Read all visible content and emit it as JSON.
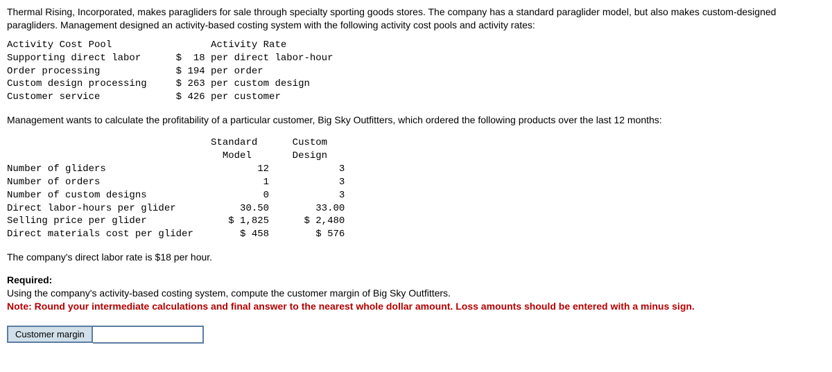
{
  "intro": {
    "p1": "Thermal Rising, Incorporated, makes paragliders for sale through specialty sporting goods stores. The company has a standard paraglider model, but also makes custom-designed paragliders. Management designed an activity-based costing system with the following activity cost pools and activity rates:"
  },
  "activity_table": {
    "header_left": "Activity Cost Pool",
    "header_right": "Activity Rate",
    "rows": [
      {
        "pool": "Supporting direct labor",
        "rate": "$ 18 per direct labor-hour"
      },
      {
        "pool": "Order processing",
        "rate": "$ 194 per order"
      },
      {
        "pool": "Custom design processing",
        "rate": "$ 263 per custom design"
      },
      {
        "pool": "Customer service",
        "rate": "$ 426 per customer"
      }
    ]
  },
  "mid_paragraph": "Management wants to calculate the profitability of a particular customer, Big Sky Outfitters, which ordered the following products over the last 12 months:",
  "product_table": {
    "col_headers": {
      "std_l1": "Standard",
      "std_l2": "Model",
      "cus_l1": "Custom",
      "cus_l2": "Design"
    },
    "rows": [
      {
        "label": "Number of gliders",
        "std": "12",
        "cus": "3"
      },
      {
        "label": "Number of orders",
        "std": "1",
        "cus": "3"
      },
      {
        "label": "Number of custom designs",
        "std": "0",
        "cus": "3"
      },
      {
        "label": "Direct labor-hours per glider",
        "std": "30.50",
        "cus": "33.00"
      },
      {
        "label": "Selling price per glider",
        "std": "$ 1,825",
        "cus": "$ 2,480"
      },
      {
        "label": "Direct materials cost per glider",
        "std": "$ 458",
        "cus": "$ 576"
      }
    ]
  },
  "labor_rate_line": "The company's direct labor rate is $18 per hour.",
  "required": {
    "heading": "Required:",
    "line1": "Using the company's activity-based costing system, compute the customer margin of Big Sky Outfitters.",
    "note": "Note: Round your intermediate calculations and final answer to the nearest whole dollar amount. Loss amounts should be entered with a minus sign."
  },
  "answer": {
    "label": "Customer margin",
    "value": ""
  }
}
